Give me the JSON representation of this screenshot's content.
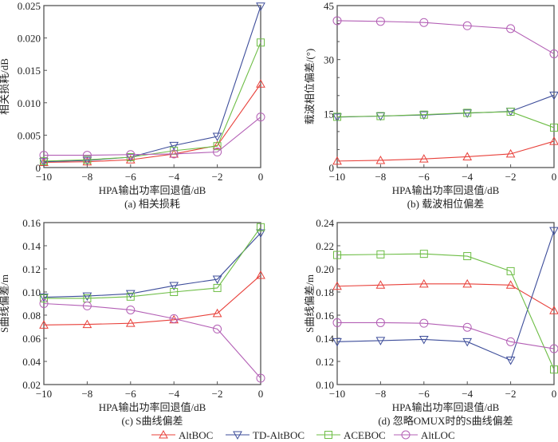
{
  "figure": {
    "legend": [
      {
        "name": "AltBOC",
        "color": "#e8403a",
        "marker": "triangle-up"
      },
      {
        "name": "TD-AltBOC",
        "color": "#3d4d9a",
        "marker": "triangle-down"
      },
      {
        "name": "ACEBOC",
        "color": "#6dbd45",
        "marker": "square"
      },
      {
        "name": "AltLOC",
        "color": "#b35fb5",
        "marker": "circle"
      }
    ],
    "legend_position": "bottom-center"
  },
  "chart_data": [
    {
      "type": "line",
      "id": "a",
      "caption": "(a) 相关损耗",
      "xlabel": "HPA输出功率回退值/dB",
      "ylabel": "相关损耗/dB",
      "x": [
        -10,
        -8,
        -6,
        -4,
        -2,
        0
      ],
      "xlim": [
        -10,
        0
      ],
      "ylim": [
        0,
        0.025
      ],
      "xticks": [
        -10,
        -8,
        -6,
        -4,
        -2,
        0
      ],
      "xtick_labels": [
        "−10",
        "−8",
        "−6",
        "−4",
        "−2",
        "0"
      ],
      "yticks": [
        0,
        0.005,
        0.01,
        0.015,
        0.02,
        0.025
      ],
      "ytick_labels": [
        "0",
        "0.005",
        "0.010",
        "0.015",
        "0.020",
        "0.025"
      ],
      "yminor": [],
      "grid": false,
      "series": [
        {
          "name": "AltBOC",
          "values": [
            0.0008,
            0.0009,
            0.0012,
            0.0021,
            0.0034,
            0.0129
          ]
        },
        {
          "name": "TD-AltBOC",
          "values": [
            0.0009,
            0.0011,
            0.0016,
            0.0034,
            0.0048,
            0.0249
          ]
        },
        {
          "name": "ACEBOC",
          "values": [
            0.001,
            0.0012,
            0.0016,
            0.0026,
            0.0033,
            0.0193
          ]
        },
        {
          "name": "AltLOC",
          "values": [
            0.0019,
            0.0019,
            0.002,
            0.0021,
            0.0024,
            0.0078
          ]
        }
      ]
    },
    {
      "type": "line",
      "id": "b",
      "caption": "(b) 载波相位偏差",
      "xlabel": "HPA输出功率回退值/dB",
      "ylabel": "载波相位偏差/(°)",
      "x": [
        -10,
        -8,
        -6,
        -4,
        -2,
        0
      ],
      "xlim": [
        -10,
        0
      ],
      "ylim": [
        0,
        45
      ],
      "xticks": [
        -10,
        -8,
        -6,
        -4,
        -2,
        0
      ],
      "xtick_labels": [
        "−10",
        "−8",
        "−6",
        "−4",
        "−2",
        "0"
      ],
      "yticks": [
        0,
        15,
        30,
        45
      ],
      "ytick_labels": [
        "0",
        "15",
        "30",
        "45"
      ],
      "yminor": [
        5,
        10,
        20,
        25,
        35,
        40
      ],
      "grid": false,
      "series": [
        {
          "name": "AltBOC",
          "values": [
            1.8,
            2.0,
            2.4,
            3.0,
            3.8,
            7.3
          ]
        },
        {
          "name": "TD-AltBOC",
          "values": [
            14.0,
            14.3,
            14.6,
            15.1,
            15.6,
            20.1
          ]
        },
        {
          "name": "ACEBOC",
          "values": [
            14.1,
            14.3,
            14.7,
            15.2,
            15.5,
            11.1
          ]
        },
        {
          "name": "AltLOC",
          "values": [
            40.8,
            40.6,
            40.3,
            39.4,
            38.6,
            31.6
          ]
        }
      ]
    },
    {
      "type": "line",
      "id": "c",
      "caption": "(c) S曲线偏差",
      "xlabel": "HPA输出功率回退值/dB",
      "ylabel": "S曲线偏差/m",
      "x": [
        -10,
        -8,
        -6,
        -4,
        -2,
        0
      ],
      "xlim": [
        -10,
        0
      ],
      "ylim": [
        0.02,
        0.16
      ],
      "xticks": [
        -10,
        -8,
        -6,
        -4,
        -2,
        0
      ],
      "xtick_labels": [
        "−10",
        "−8",
        "−6",
        "−4",
        "−2",
        "0"
      ],
      "yticks": [
        0.02,
        0.04,
        0.06,
        0.08,
        0.1,
        0.12,
        0.14,
        0.16
      ],
      "ytick_labels": [
        "0.02",
        "0.04",
        "0.06",
        "0.08",
        "0.10",
        "0.12",
        "0.14",
        "0.16"
      ],
      "yminor": [],
      "grid": false,
      "series": [
        {
          "name": "AltBOC",
          "values": [
            0.0715,
            0.072,
            0.073,
            0.076,
            0.0815,
            0.1145
          ]
        },
        {
          "name": "TD-AltBOC",
          "values": [
            0.0955,
            0.0965,
            0.0985,
            0.1055,
            0.111,
            0.151
          ]
        },
        {
          "name": "ACEBOC",
          "values": [
            0.0945,
            0.0945,
            0.096,
            0.1,
            0.1035,
            0.156
          ]
        },
        {
          "name": "AltLOC",
          "values": [
            0.09,
            0.088,
            0.0845,
            0.077,
            0.068,
            0.0255
          ]
        }
      ]
    },
    {
      "type": "line",
      "id": "d",
      "caption": "(d) 忽略OMUX时的S曲线偏差",
      "xlabel": "HPA输出功率回退值/dB",
      "ylabel": "S曲线偏差/m",
      "x": [
        -10,
        -8,
        -6,
        -4,
        -2,
        0
      ],
      "xlim": [
        -10,
        0
      ],
      "ylim": [
        0.1,
        0.24
      ],
      "xticks": [
        -10,
        -8,
        -6,
        -4,
        -2,
        0
      ],
      "xtick_labels": [
        "−10",
        "−8",
        "−6",
        "−4",
        "−2",
        "0"
      ],
      "yticks": [
        0.1,
        0.12,
        0.14,
        0.16,
        0.18,
        0.2,
        0.22,
        0.24
      ],
      "ytick_labels": [
        "0.10",
        "0.12",
        "0.14",
        "0.16",
        "0.18",
        "0.20",
        "0.22",
        "0.24"
      ],
      "yminor": [],
      "grid": false,
      "series": [
        {
          "name": "AltBOC",
          "values": [
            0.185,
            0.186,
            0.187,
            0.187,
            0.186,
            0.164
          ]
        },
        {
          "name": "TD-AltBOC",
          "values": [
            0.137,
            0.138,
            0.139,
            0.137,
            0.121,
            0.233
          ]
        },
        {
          "name": "ACEBOC",
          "values": [
            0.212,
            0.2125,
            0.213,
            0.211,
            0.198,
            0.113
          ]
        },
        {
          "name": "AltLOC",
          "values": [
            0.1535,
            0.1535,
            0.153,
            0.1495,
            0.137,
            0.131
          ]
        }
      ]
    }
  ]
}
